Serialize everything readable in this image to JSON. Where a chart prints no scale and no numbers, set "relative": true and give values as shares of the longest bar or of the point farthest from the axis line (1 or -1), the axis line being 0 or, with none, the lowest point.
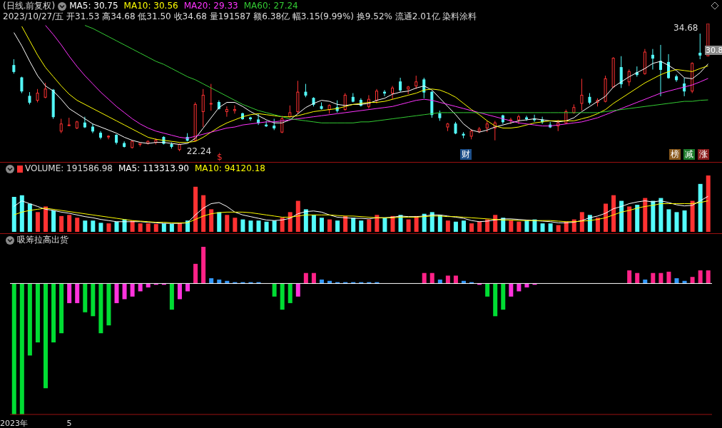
{
  "chart_data": [
    {
      "type": "candlestick",
      "title": "(日线.前复权)",
      "legend": "top left",
      "tick_labels": false,
      "annotations": [
        "2023/10/27/五 开31.53 高34.68 低31.50 收34.68 量191587 额6.38亿 幅3.15(9.99%) 换9.52% 流通2.01亿 染料涂料",
        "34.68",
        "22.24",
        "30.8",
        "$",
        "财",
        "榜",
        "减",
        "涨"
      ],
      "categories": [
        null,
        null,
        null,
        null,
        null,
        null,
        null,
        null,
        null,
        null,
        null,
        null,
        null,
        null,
        null,
        null,
        null,
        null,
        null,
        null,
        null,
        null,
        null,
        null,
        null,
        null,
        null,
        null,
        null,
        null,
        null,
        null,
        null,
        null,
        null,
        null,
        null,
        null,
        null,
        null,
        null,
        null,
        null,
        null,
        null,
        null,
        null,
        null,
        null,
        null,
        null,
        null,
        null,
        null,
        null,
        null,
        null,
        null,
        null,
        null,
        null,
        null,
        null,
        null,
        null,
        null,
        null,
        null,
        null,
        null,
        null,
        null,
        null,
        null,
        null,
        null,
        null,
        null,
        null,
        null,
        null,
        null,
        null,
        null,
        null,
        null,
        null,
        null,
        null
      ],
      "ohlc": [
        [
          30.6,
          31.2,
          29.8,
          30.0
        ],
        [
          29.4,
          29.5,
          27.9,
          28.1
        ],
        [
          27.6,
          28.0,
          26.8,
          27.0
        ],
        [
          27.2,
          28.3,
          27.0,
          27.9
        ],
        [
          27.5,
          28.9,
          27.4,
          28.3
        ],
        [
          28.2,
          28.3,
          25.4,
          25.6
        ],
        [
          24.2,
          25.4,
          24.0,
          24.9
        ],
        [
          24.8,
          25.5,
          24.7,
          24.8
        ],
        [
          24.5,
          25.2,
          24.4,
          25.1
        ],
        [
          25.0,
          25.6,
          24.5,
          24.6
        ],
        [
          24.6,
          24.9,
          24.0,
          24.2
        ],
        [
          24.0,
          24.2,
          23.4,
          23.6
        ],
        [
          23.7,
          23.8,
          23.4,
          23.7
        ],
        [
          23.8,
          23.9,
          22.9,
          23.1
        ],
        [
          23.0,
          23.2,
          22.6,
          22.7
        ],
        [
          22.6,
          23.3,
          22.5,
          23.2
        ],
        [
          22.9,
          23.0,
          22.7,
          23.0
        ],
        [
          23.0,
          23.3,
          22.9,
          23.2
        ],
        [
          23.1,
          23.5,
          22.9,
          23.3
        ],
        [
          23.6,
          23.7,
          22.9,
          23.0
        ],
        [
          22.9,
          23.1,
          22.5,
          22.7
        ],
        [
          22.4,
          23.0,
          22.24,
          22.9
        ],
        [
          23.6,
          24.0,
          23.2,
          23.3
        ],
        [
          23.3,
          27.0,
          23.2,
          26.8
        ],
        [
          26.1,
          28.3,
          24.6,
          27.7
        ],
        [
          26.9,
          28.8,
          26.2,
          26.9
        ],
        [
          27.0,
          27.2,
          26.3,
          26.4
        ],
        [
          26.1,
          26.6,
          25.6,
          26.3
        ],
        [
          26.2,
          26.7,
          25.9,
          26.3
        ],
        [
          25.9,
          26.0,
          25.3,
          25.4
        ],
        [
          25.5,
          25.6,
          25.2,
          25.4
        ],
        [
          25.3,
          25.9,
          24.8,
          25.0
        ],
        [
          24.8,
          25.2,
          24.6,
          24.7
        ],
        [
          24.7,
          25.4,
          24.3,
          24.5
        ],
        [
          24.1,
          25.7,
          24.0,
          25.4
        ],
        [
          25.6,
          26.7,
          25.5,
          26.0
        ],
        [
          26.1,
          29.1,
          25.9,
          28.0
        ],
        [
          28.0,
          28.8,
          27.5,
          27.7
        ],
        [
          27.4,
          27.5,
          26.6,
          26.8
        ],
        [
          26.6,
          27.0,
          26.3,
          26.4
        ],
        [
          26.3,
          26.8,
          25.9,
          26.7
        ],
        [
          26.5,
          27.2,
          26.0,
          26.2
        ],
        [
          26.3,
          27.9,
          26.2,
          27.7
        ],
        [
          27.5,
          27.9,
          27.0,
          27.1
        ],
        [
          27.2,
          27.4,
          26.6,
          26.7
        ],
        [
          26.6,
          27.7,
          26.4,
          27.3
        ],
        [
          27.2,
          28.3,
          26.9,
          28.1
        ],
        [
          28.0,
          28.2,
          27.6,
          27.9
        ],
        [
          27.9,
          28.6,
          27.3,
          28.4
        ],
        [
          29.0,
          29.4,
          28.0,
          28.2
        ],
        [
          28.3,
          28.6,
          27.8,
          28.5
        ],
        [
          28.6,
          29.6,
          28.3,
          29.0
        ],
        [
          29.2,
          29.4,
          27.4,
          28.0
        ],
        [
          28.0,
          28.1,
          25.5,
          25.8
        ],
        [
          25.9,
          26.2,
          25.2,
          25.5
        ],
        [
          24.6,
          25.0,
          24.2,
          24.9
        ],
        [
          24.9,
          25.1,
          23.9,
          24.0
        ],
        [
          23.9,
          24.1,
          23.5,
          23.8
        ],
        [
          23.7,
          24.4,
          23.4,
          24.2
        ],
        [
          24.2,
          24.6,
          24.0,
          24.4
        ],
        [
          24.5,
          25.2,
          24.1,
          24.9
        ],
        [
          24.5,
          25.2,
          23.3,
          25.0
        ],
        [
          25.7,
          25.8,
          24.9,
          25.1
        ],
        [
          25.2,
          25.5,
          24.9,
          25.3
        ],
        [
          25.3,
          25.8,
          24.9,
          25.6
        ],
        [
          25.5,
          25.7,
          25.2,
          25.4
        ],
        [
          25.4,
          25.8,
          25.1,
          25.3
        ],
        [
          25.3,
          25.6,
          24.9,
          25.1
        ],
        [
          24.8,
          25.1,
          24.5,
          24.6
        ],
        [
          24.7,
          25.3,
          24.2,
          25.0
        ],
        [
          25.0,
          26.3,
          24.9,
          26.1
        ],
        [
          26.0,
          26.8,
          25.9,
          26.5
        ],
        [
          26.9,
          29.3,
          26.2,
          27.7
        ],
        [
          27.5,
          27.9,
          26.8,
          27.0
        ],
        [
          27.0,
          27.4,
          26.6,
          27.2
        ],
        [
          27.1,
          29.6,
          27.0,
          29.3
        ],
        [
          28.5,
          31.4,
          28.4,
          31.3
        ],
        [
          30.4,
          31.5,
          28.4,
          28.8
        ],
        [
          29.0,
          30.2,
          28.6,
          30.0
        ],
        [
          29.9,
          30.5,
          29.5,
          29.7
        ],
        [
          29.8,
          32.2,
          29.7,
          31.9
        ],
        [
          31.6,
          32.2,
          30.2,
          31.3
        ],
        [
          31.0,
          32.6,
          27.6,
          30.2
        ],
        [
          30.9,
          31.7,
          29.3,
          29.4
        ],
        [
          29.5,
          29.7,
          29.0,
          29.2
        ],
        [
          28.8,
          29.4,
          27.6,
          28.1
        ],
        [
          28.1,
          30.9,
          27.9,
          30.8
        ],
        [
          31.8,
          33.7,
          31.2,
          31.6
        ],
        [
          31.53,
          34.68,
          31.5,
          34.68
        ]
      ],
      "series": [
        {
          "name": "MA5: 30.75",
          "type": "line",
          "color": "#ffffff",
          "values": [
            33.8,
            32.5,
            31.0,
            29.6,
            28.6,
            28.1,
            27.3,
            26.4,
            25.9,
            25.4,
            24.9,
            24.6,
            24.3,
            24.0,
            23.6,
            23.3,
            23.1,
            23.0,
            23.1,
            23.1,
            23.0,
            22.9,
            23.0,
            23.5,
            24.5,
            25.5,
            26.5,
            27.0,
            27.0,
            26.6,
            26.1,
            25.7,
            25.3,
            25.0,
            25.0,
            25.3,
            25.9,
            26.5,
            26.9,
            27.2,
            27.1,
            26.8,
            26.7,
            26.8,
            26.8,
            26.9,
            27.2,
            27.4,
            27.8,
            28.0,
            28.1,
            28.4,
            28.6,
            28.2,
            27.4,
            26.6,
            25.8,
            24.9,
            24.3,
            24.1,
            24.3,
            24.6,
            24.8,
            25.0,
            25.2,
            25.3,
            25.4,
            25.3,
            25.2,
            25.1,
            25.2,
            25.5,
            26.1,
            26.6,
            27.1,
            27.6,
            28.5,
            29.0,
            29.5,
            29.9,
            30.3,
            30.8,
            31.0,
            30.6,
            30.1,
            29.4,
            29.3,
            29.9,
            30.75
          ]
        },
        {
          "name": "MA10: 30.56",
          "type": "line",
          "color": "#ffff00",
          "values": [
            null,
            34.4,
            33.0,
            31.6,
            30.4,
            29.5,
            28.6,
            27.8,
            27.2,
            26.8,
            26.4,
            26.0,
            25.6,
            25.2,
            24.8,
            24.4,
            24.0,
            23.6,
            23.4,
            23.3,
            23.2,
            23.1,
            23.1,
            23.2,
            23.6,
            24.1,
            24.6,
            25.0,
            25.3,
            25.6,
            25.8,
            25.9,
            25.8,
            25.7,
            25.6,
            25.6,
            25.7,
            25.9,
            26.1,
            26.2,
            26.3,
            26.4,
            26.6,
            26.8,
            26.9,
            27.0,
            27.0,
            27.1,
            27.3,
            27.5,
            27.7,
            27.9,
            28.2,
            28.3,
            28.2,
            27.9,
            27.5,
            26.9,
            26.3,
            25.8,
            25.2,
            24.7,
            24.5,
            24.5,
            24.6,
            24.8,
            25.0,
            25.1,
            25.2,
            25.2,
            25.2,
            25.2,
            25.4,
            25.6,
            25.9,
            26.3,
            26.9,
            27.4,
            27.9,
            28.4,
            28.9,
            29.3,
            29.7,
            30.0,
            30.2,
            30.1,
            30.0,
            30.3,
            30.56
          ]
        },
        {
          "name": "MA20: 29.33",
          "type": "line",
          "color": "#ff33ff",
          "values": [
            null,
            null,
            null,
            null,
            34.5,
            33.6,
            32.6,
            31.5,
            30.5,
            29.6,
            28.8,
            28.0,
            27.3,
            26.6,
            26.0,
            25.4,
            24.9,
            24.5,
            24.2,
            24.0,
            23.8,
            23.6,
            23.5,
            23.7,
            23.9,
            24.1,
            24.3,
            24.5,
            24.6,
            24.8,
            24.9,
            25.0,
            25.1,
            25.1,
            25.2,
            25.3,
            25.4,
            25.5,
            25.6,
            25.7,
            25.8,
            25.9,
            26.0,
            26.1,
            26.2,
            26.3,
            26.4,
            26.5,
            26.6,
            26.8,
            27.0,
            27.2,
            27.3,
            27.2,
            27.0,
            26.8,
            26.6,
            26.4,
            26.2,
            26.0,
            25.8,
            25.6,
            25.4,
            25.2,
            25.0,
            24.9,
            24.8,
            24.7,
            24.7,
            24.8,
            24.9,
            25.0,
            25.1,
            25.3,
            25.5,
            25.8,
            26.1,
            26.4,
            26.7,
            27.0,
            27.3,
            27.6,
            27.9,
            28.1,
            28.3,
            28.5,
            28.7,
            29.0,
            29.33
          ]
        },
        {
          "name": "MA60: 27.24",
          "type": "line",
          "color": "#33cc33",
          "values": [
            null,
            null,
            null,
            null,
            null,
            null,
            null,
            null,
            null,
            34.5,
            34.2,
            33.8,
            33.4,
            33.0,
            32.6,
            32.2,
            31.8,
            31.4,
            31.0,
            30.7,
            30.3,
            29.9,
            29.5,
            29.2,
            28.8,
            28.4,
            28.0,
            27.6,
            27.2,
            26.8,
            26.5,
            26.2,
            26.0,
            25.8,
            25.6,
            25.4,
            25.3,
            25.2,
            25.1,
            25.0,
            25.0,
            25.0,
            25.0,
            25.0,
            25.1,
            25.1,
            25.2,
            25.3,
            25.4,
            25.5,
            25.6,
            25.7,
            25.8,
            25.9,
            26.0,
            26.0,
            26.0,
            26.0,
            26.0,
            26.0,
            26.0,
            26.0,
            26.0,
            26.0,
            26.0,
            26.0,
            26.0,
            26.0,
            26.0,
            26.0,
            26.0,
            26.0,
            26.0,
            26.0,
            26.0,
            26.1,
            26.2,
            26.3,
            26.4,
            26.5,
            26.6,
            26.7,
            26.8,
            26.9,
            27.0,
            27.1,
            27.1,
            27.2,
            27.24
          ]
        }
      ]
    },
    {
      "type": "bar",
      "relative": true,
      "legend": "top left",
      "tick_labels": false,
      "categories": [
        null,
        null,
        null,
        null,
        null,
        null,
        null,
        null,
        null,
        null,
        null,
        null,
        null,
        null,
        null,
        null,
        null,
        null,
        null,
        null,
        null,
        null,
        null,
        null,
        null,
        null,
        null,
        null,
        null,
        null,
        null,
        null,
        null,
        null,
        null,
        null,
        null,
        null,
        null,
        null,
        null,
        null,
        null,
        null,
        null,
        null,
        null,
        null,
        null,
        null,
        null,
        null,
        null,
        null,
        null,
        null,
        null,
        null,
        null,
        null,
        null,
        null,
        null,
        null,
        null,
        null,
        null,
        null,
        null,
        null,
        null,
        null,
        null,
        null,
        null,
        null,
        null,
        null,
        null,
        null,
        null,
        null,
        null,
        null,
        null,
        null,
        null,
        null,
        null
      ],
      "series": [
        {
          "name": "VOLUME: 191586.98",
          "type": "bar",
          "color": "#dddddd",
          "values": [
            0.62,
            0.65,
            0.5,
            0.35,
            0.45,
            0.38,
            0.28,
            0.3,
            0.25,
            0.2,
            0.2,
            0.16,
            0.15,
            0.18,
            0.22,
            0.2,
            0.15,
            0.15,
            0.14,
            0.15,
            0.14,
            0.15,
            0.2,
            0.8,
            0.65,
            0.4,
            0.35,
            0.3,
            0.25,
            0.22,
            0.2,
            0.2,
            0.18,
            0.2,
            0.25,
            0.35,
            0.55,
            0.4,
            0.3,
            0.25,
            0.22,
            0.2,
            0.28,
            0.25,
            0.2,
            0.22,
            0.3,
            0.25,
            0.28,
            0.3,
            0.22,
            0.28,
            0.32,
            0.35,
            0.3,
            0.2,
            0.18,
            0.2,
            0.15,
            0.18,
            0.22,
            0.3,
            0.25,
            0.2,
            0.18,
            0.2,
            0.22,
            0.15,
            0.15,
            0.12,
            0.18,
            0.22,
            0.35,
            0.3,
            0.25,
            0.5,
            0.65,
            0.55,
            0.45,
            0.48,
            0.6,
            0.55,
            0.6,
            0.4,
            0.35,
            0.38,
            0.55,
            0.85,
            1
          ],
          "colors": [
            "#54fcfc",
            "#54fcfc",
            "#54fcfc",
            "#ff3232",
            "#ff3232",
            "#54fcfc",
            "#ff3232",
            "#ff3232",
            "#ff3232",
            "#54fcfc",
            "#54fcfc",
            "#54fcfc",
            "#ff3232",
            "#54fcfc",
            "#54fcfc",
            "#ff3232",
            "#ff3232",
            "#ff3232",
            "#ff3232",
            "#54fcfc",
            "#54fcfc",
            "#ff3232",
            "#54fcfc",
            "#ff3232",
            "#ff3232",
            "#ff3232",
            "#54fcfc",
            "#ff3232",
            "#ff3232",
            "#54fcfc",
            "#54fcfc",
            "#54fcfc",
            "#54fcfc",
            "#54fcfc",
            "#ff3232",
            "#ff3232",
            "#ff3232",
            "#54fcfc",
            "#54fcfc",
            "#54fcfc",
            "#ff3232",
            "#54fcfc",
            "#ff3232",
            "#54fcfc",
            "#54fcfc",
            "#ff3232",
            "#ff3232",
            "#54fcfc",
            "#ff3232",
            "#54fcfc",
            "#ff3232",
            "#ff3232",
            "#54fcfc",
            "#54fcfc",
            "#54fcfc",
            "#ff3232",
            "#54fcfc",
            "#54fcfc",
            "#ff3232",
            "#ff3232",
            "#ff3232",
            "#ff3232",
            "#54fcfc",
            "#ff3232",
            "#ff3232",
            "#54fcfc",
            "#54fcfc",
            "#54fcfc",
            "#54fcfc",
            "#ff3232",
            "#ff3232",
            "#ff3232",
            "#ff3232",
            "#54fcfc",
            "#ff3232",
            "#ff3232",
            "#ff3232",
            "#54fcfc",
            "#ff3232",
            "#54fcfc",
            "#ff3232",
            "#54fcfc",
            "#54fcfc",
            "#54fcfc",
            "#54fcfc",
            "#54fcfc",
            "#ff3232",
            "#54fcfc",
            "#ff3232"
          ]
        },
        {
          "name": "MA5: 113313.90",
          "type": "line",
          "color": "#ffffff",
          "values": [
            0.45,
            0.55,
            0.5,
            0.45,
            0.4,
            0.38,
            0.35,
            0.33,
            0.3,
            0.27,
            0.25,
            0.22,
            0.2,
            0.18,
            0.18,
            0.18,
            0.18,
            0.17,
            0.16,
            0.15,
            0.15,
            0.15,
            0.16,
            0.3,
            0.42,
            0.5,
            0.52,
            0.45,
            0.35,
            0.3,
            0.27,
            0.24,
            0.21,
            0.2,
            0.21,
            0.24,
            0.32,
            0.36,
            0.37,
            0.35,
            0.3,
            0.26,
            0.25,
            0.24,
            0.24,
            0.23,
            0.25,
            0.25,
            0.26,
            0.28,
            0.27,
            0.27,
            0.28,
            0.3,
            0.3,
            0.28,
            0.26,
            0.24,
            0.2,
            0.18,
            0.19,
            0.21,
            0.23,
            0.23,
            0.22,
            0.21,
            0.2,
            0.19,
            0.18,
            0.16,
            0.16,
            0.17,
            0.2,
            0.25,
            0.28,
            0.33,
            0.41,
            0.45,
            0.5,
            0.53,
            0.55,
            0.53,
            0.55,
            0.52,
            0.48,
            0.46,
            0.47,
            0.55,
            0.63
          ]
        },
        {
          "name": "MA10: 94120.18",
          "type": "line",
          "color": "#ffff00",
          "values": [
            0.3,
            0.35,
            0.38,
            0.4,
            0.42,
            0.4,
            0.38,
            0.36,
            0.34,
            0.32,
            0.3,
            0.28,
            0.26,
            0.24,
            0.22,
            0.2,
            0.19,
            0.18,
            0.17,
            0.17,
            0.16,
            0.16,
            0.16,
            0.22,
            0.28,
            0.32,
            0.34,
            0.35,
            0.35,
            0.35,
            0.34,
            0.32,
            0.3,
            0.28,
            0.26,
            0.26,
            0.28,
            0.3,
            0.3,
            0.3,
            0.3,
            0.29,
            0.28,
            0.28,
            0.27,
            0.26,
            0.25,
            0.25,
            0.25,
            0.26,
            0.26,
            0.26,
            0.27,
            0.28,
            0.28,
            0.27,
            0.27,
            0.26,
            0.25,
            0.24,
            0.23,
            0.22,
            0.21,
            0.21,
            0.2,
            0.2,
            0.2,
            0.2,
            0.2,
            0.19,
            0.18,
            0.18,
            0.19,
            0.2,
            0.22,
            0.25,
            0.3,
            0.35,
            0.38,
            0.42,
            0.45,
            0.47,
            0.5,
            0.5,
            0.5,
            0.5,
            0.5,
            0.52,
            0.55
          ]
        }
      ]
    },
    {
      "type": "bar",
      "relative": true,
      "title": "吸筹拉高出货",
      "tick_labels": "x",
      "categories": [
        "2023年",
        null,
        null,
        null,
        null,
        null,
        null,
        "5",
        null,
        null,
        null,
        null,
        null,
        null,
        null,
        null,
        null,
        null,
        null,
        null,
        null,
        null,
        null,
        null,
        null,
        null,
        null,
        null,
        null,
        null,
        null,
        null,
        null,
        null,
        null,
        null,
        null,
        null,
        null,
        null,
        null,
        null,
        null,
        null,
        null,
        null,
        null,
        null,
        null,
        null,
        null,
        null,
        null,
        null,
        null,
        null,
        null,
        null,
        null,
        null,
        null,
        null,
        null,
        null,
        null,
        null,
        null,
        null,
        null,
        null,
        null,
        null,
        null,
        null,
        null,
        null,
        null,
        null,
        null,
        null,
        null,
        null,
        null,
        null,
        null,
        null,
        null,
        null,
        null
      ],
      "values": [
        -1.0,
        -1.0,
        -0.55,
        -0.45,
        -0.8,
        -0.45,
        -0.38,
        -0.15,
        -0.15,
        -0.22,
        -0.25,
        -0.38,
        -0.32,
        -0.15,
        -0.12,
        -0.1,
        -0.06,
        -0.03,
        -0.01,
        -0.01,
        -0.2,
        -0.12,
        -0.06,
        0.15,
        0.28,
        0.04,
        0.03,
        0.02,
        0.01,
        0.01,
        0.01,
        0.01,
        0,
        -0.1,
        -0.2,
        -0.15,
        -0.1,
        0.08,
        0.08,
        0.03,
        0.02,
        0.01,
        0.01,
        0.01,
        0.01,
        0.01,
        0.01,
        0,
        0,
        0,
        0,
        0,
        0.08,
        0.08,
        0.03,
        0.06,
        0.06,
        0.02,
        0.01,
        -0.01,
        -0.1,
        -0.25,
        -0.2,
        -0.1,
        -0.06,
        -0.03,
        -0.01,
        0,
        0,
        0,
        0,
        0,
        0,
        0,
        0,
        0,
        0,
        0,
        0.1,
        0.08,
        0.03,
        0.08,
        0.08,
        0.09,
        0.04,
        0.02,
        0.05,
        0.1,
        0.1
      ],
      "colors": [
        "#00dd33",
        "#00dd33",
        "#00dd33",
        "#00dd33",
        "#00dd33",
        "#00dd33",
        "#00dd33",
        "#ff33dd",
        "#ff33dd",
        "#00dd33",
        "#00dd33",
        "#00dd33",
        "#00dd33",
        "#ff33dd",
        "#ff33dd",
        "#ff33dd",
        "#ff33dd",
        "#ff33dd",
        "#ff33dd",
        "#ff33dd",
        "#00dd33",
        "#ff33dd",
        "#ff33dd",
        "#ff2288",
        "#ff2288",
        "#3399ff",
        "#3399ff",
        "#3399ff",
        "#3399ff",
        "#3399ff",
        "#3399ff",
        "#3399ff",
        "#3399ff",
        "#00dd33",
        "#00dd33",
        "#00dd33",
        "#ff33dd",
        "#ff2288",
        "#ff2288",
        "#3399ff",
        "#3399ff",
        "#3399ff",
        "#3399ff",
        "#3399ff",
        "#3399ff",
        "#3399ff",
        "#3399ff",
        "#3399ff",
        "#3399ff",
        "#3399ff",
        "#3399ff",
        "#3399ff",
        "#ff2288",
        "#ff2288",
        "#3399ff",
        "#ff2288",
        "#ff2288",
        "#3399ff",
        "#3399ff",
        "#ff33dd",
        "#00dd33",
        "#00dd33",
        "#00dd33",
        "#ff33dd",
        "#ff33dd",
        "#ff33dd",
        "#ff33dd",
        "#3399ff",
        "#3399ff",
        "#3399ff",
        "#3399ff",
        "#3399ff",
        "#3399ff",
        "#3399ff",
        "#3399ff",
        "#3399ff",
        "#3399ff",
        "#3399ff",
        "#ff2288",
        "#ff2288",
        "#3399ff",
        "#ff2288",
        "#ff2288",
        "#ff2288",
        "#3399ff",
        "#3399ff",
        "#ff2288",
        "#ff2288",
        "#ff2288"
      ]
    }
  ]
}
